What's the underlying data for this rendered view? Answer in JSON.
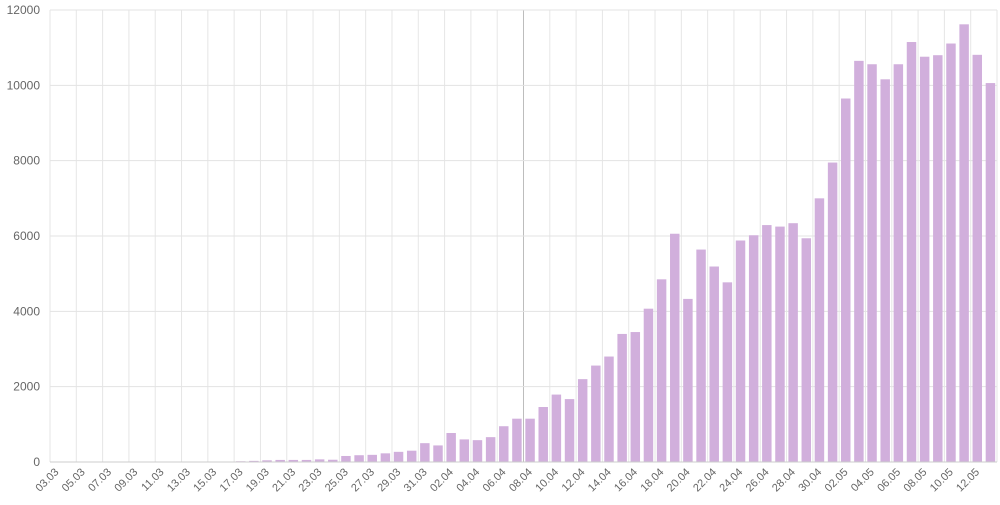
{
  "chart_data": {
    "type": "bar",
    "title": "",
    "xlabel": "",
    "ylabel": "",
    "ylim": [
      0,
      12000
    ],
    "y_ticks": [
      0,
      2000,
      4000,
      6000,
      8000,
      10000,
      12000
    ],
    "grid": true,
    "bar_color": "#d1afdc",
    "x_tick_every": 2,
    "categories": [
      "03.03",
      "04.03",
      "05.03",
      "06.03",
      "07.03",
      "08.03",
      "09.03",
      "10.03",
      "11.03",
      "12.03",
      "13.03",
      "14.03",
      "15.03",
      "16.03",
      "17.03",
      "18.03",
      "19.03",
      "20.03",
      "21.03",
      "22.03",
      "23.03",
      "24.03",
      "25.03",
      "26.03",
      "27.03",
      "28.03",
      "29.03",
      "30.03",
      "31.03",
      "01.04",
      "02.04",
      "03.04",
      "04.04",
      "05.04",
      "06.04",
      "07.04",
      "08.04",
      "09.04",
      "10.04",
      "11.04",
      "12.04",
      "13.04",
      "14.04",
      "15.04",
      "16.04",
      "17.04",
      "18.04",
      "19.04",
      "20.04",
      "21.04",
      "22.04",
      "23.04",
      "24.04",
      "25.04",
      "26.04",
      "27.04",
      "28.04",
      "29.04",
      "30.04",
      "01.05",
      "02.05",
      "03.05",
      "04.05",
      "05.05",
      "06.05",
      "07.05",
      "08.05",
      "09.05",
      "10.05",
      "11.05",
      "12.05",
      "13.05"
    ],
    "values": [
      0,
      0,
      0,
      0,
      0,
      0,
      0,
      0,
      0,
      0,
      0,
      0,
      5,
      6,
      20,
      30,
      45,
      55,
      55,
      55,
      70,
      60,
      160,
      180,
      190,
      230,
      270,
      300,
      500,
      440,
      770,
      600,
      580,
      660,
      950,
      1150,
      1150,
      1460,
      1790,
      1670,
      2200,
      2560,
      2800,
      3400,
      3450,
      4070,
      4850,
      6060,
      4330,
      5640,
      5190,
      4770,
      5880,
      6020,
      6290,
      6250,
      6340,
      5940,
      7000,
      7950,
      9650,
      10650,
      10560,
      10160,
      10560,
      11150,
      10760,
      10800,
      11110,
      11620,
      10810,
      10060
    ]
  }
}
